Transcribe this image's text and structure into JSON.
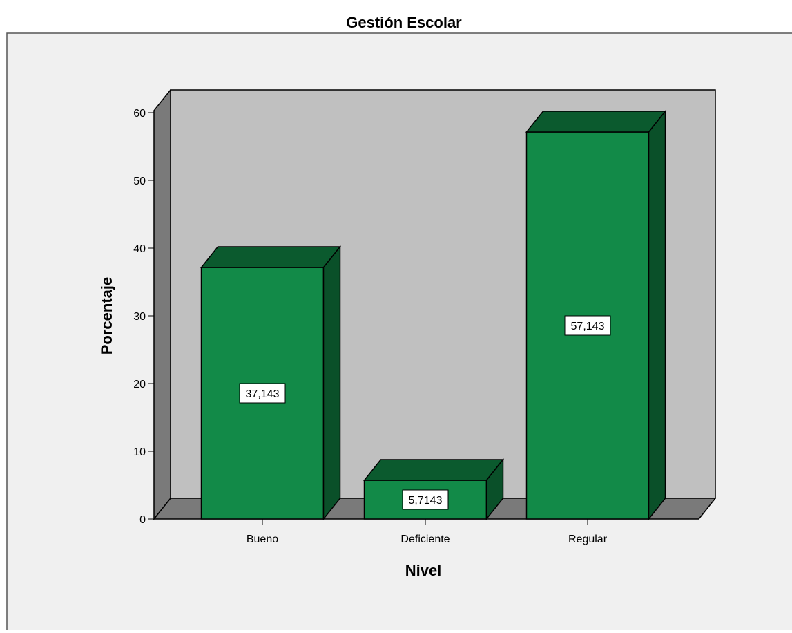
{
  "chart_data": {
    "type": "bar",
    "title": "Gestión Escolar",
    "xlabel": "Nivel",
    "ylabel": "Porcentaje",
    "categories": [
      "Bueno",
      "Deficiente",
      "Regular"
    ],
    "values": [
      37.143,
      5.7143,
      57.143
    ],
    "data_labels": [
      "37,143",
      "5,7143",
      "57,143"
    ],
    "yticks": [
      "0",
      "10",
      "20",
      "30",
      "40",
      "50",
      "60"
    ],
    "ylim": [
      0,
      60
    ],
    "grid": false,
    "three_d": true,
    "colors": {
      "bar_front": "#128a48",
      "bar_top": "#0b5a2e",
      "bar_side": "#0a5029",
      "back_wall": "#c0c0c0",
      "side_wall": "#7a7a7a",
      "floor": "#7a7a7a",
      "frame": "#f0f0f0"
    }
  }
}
